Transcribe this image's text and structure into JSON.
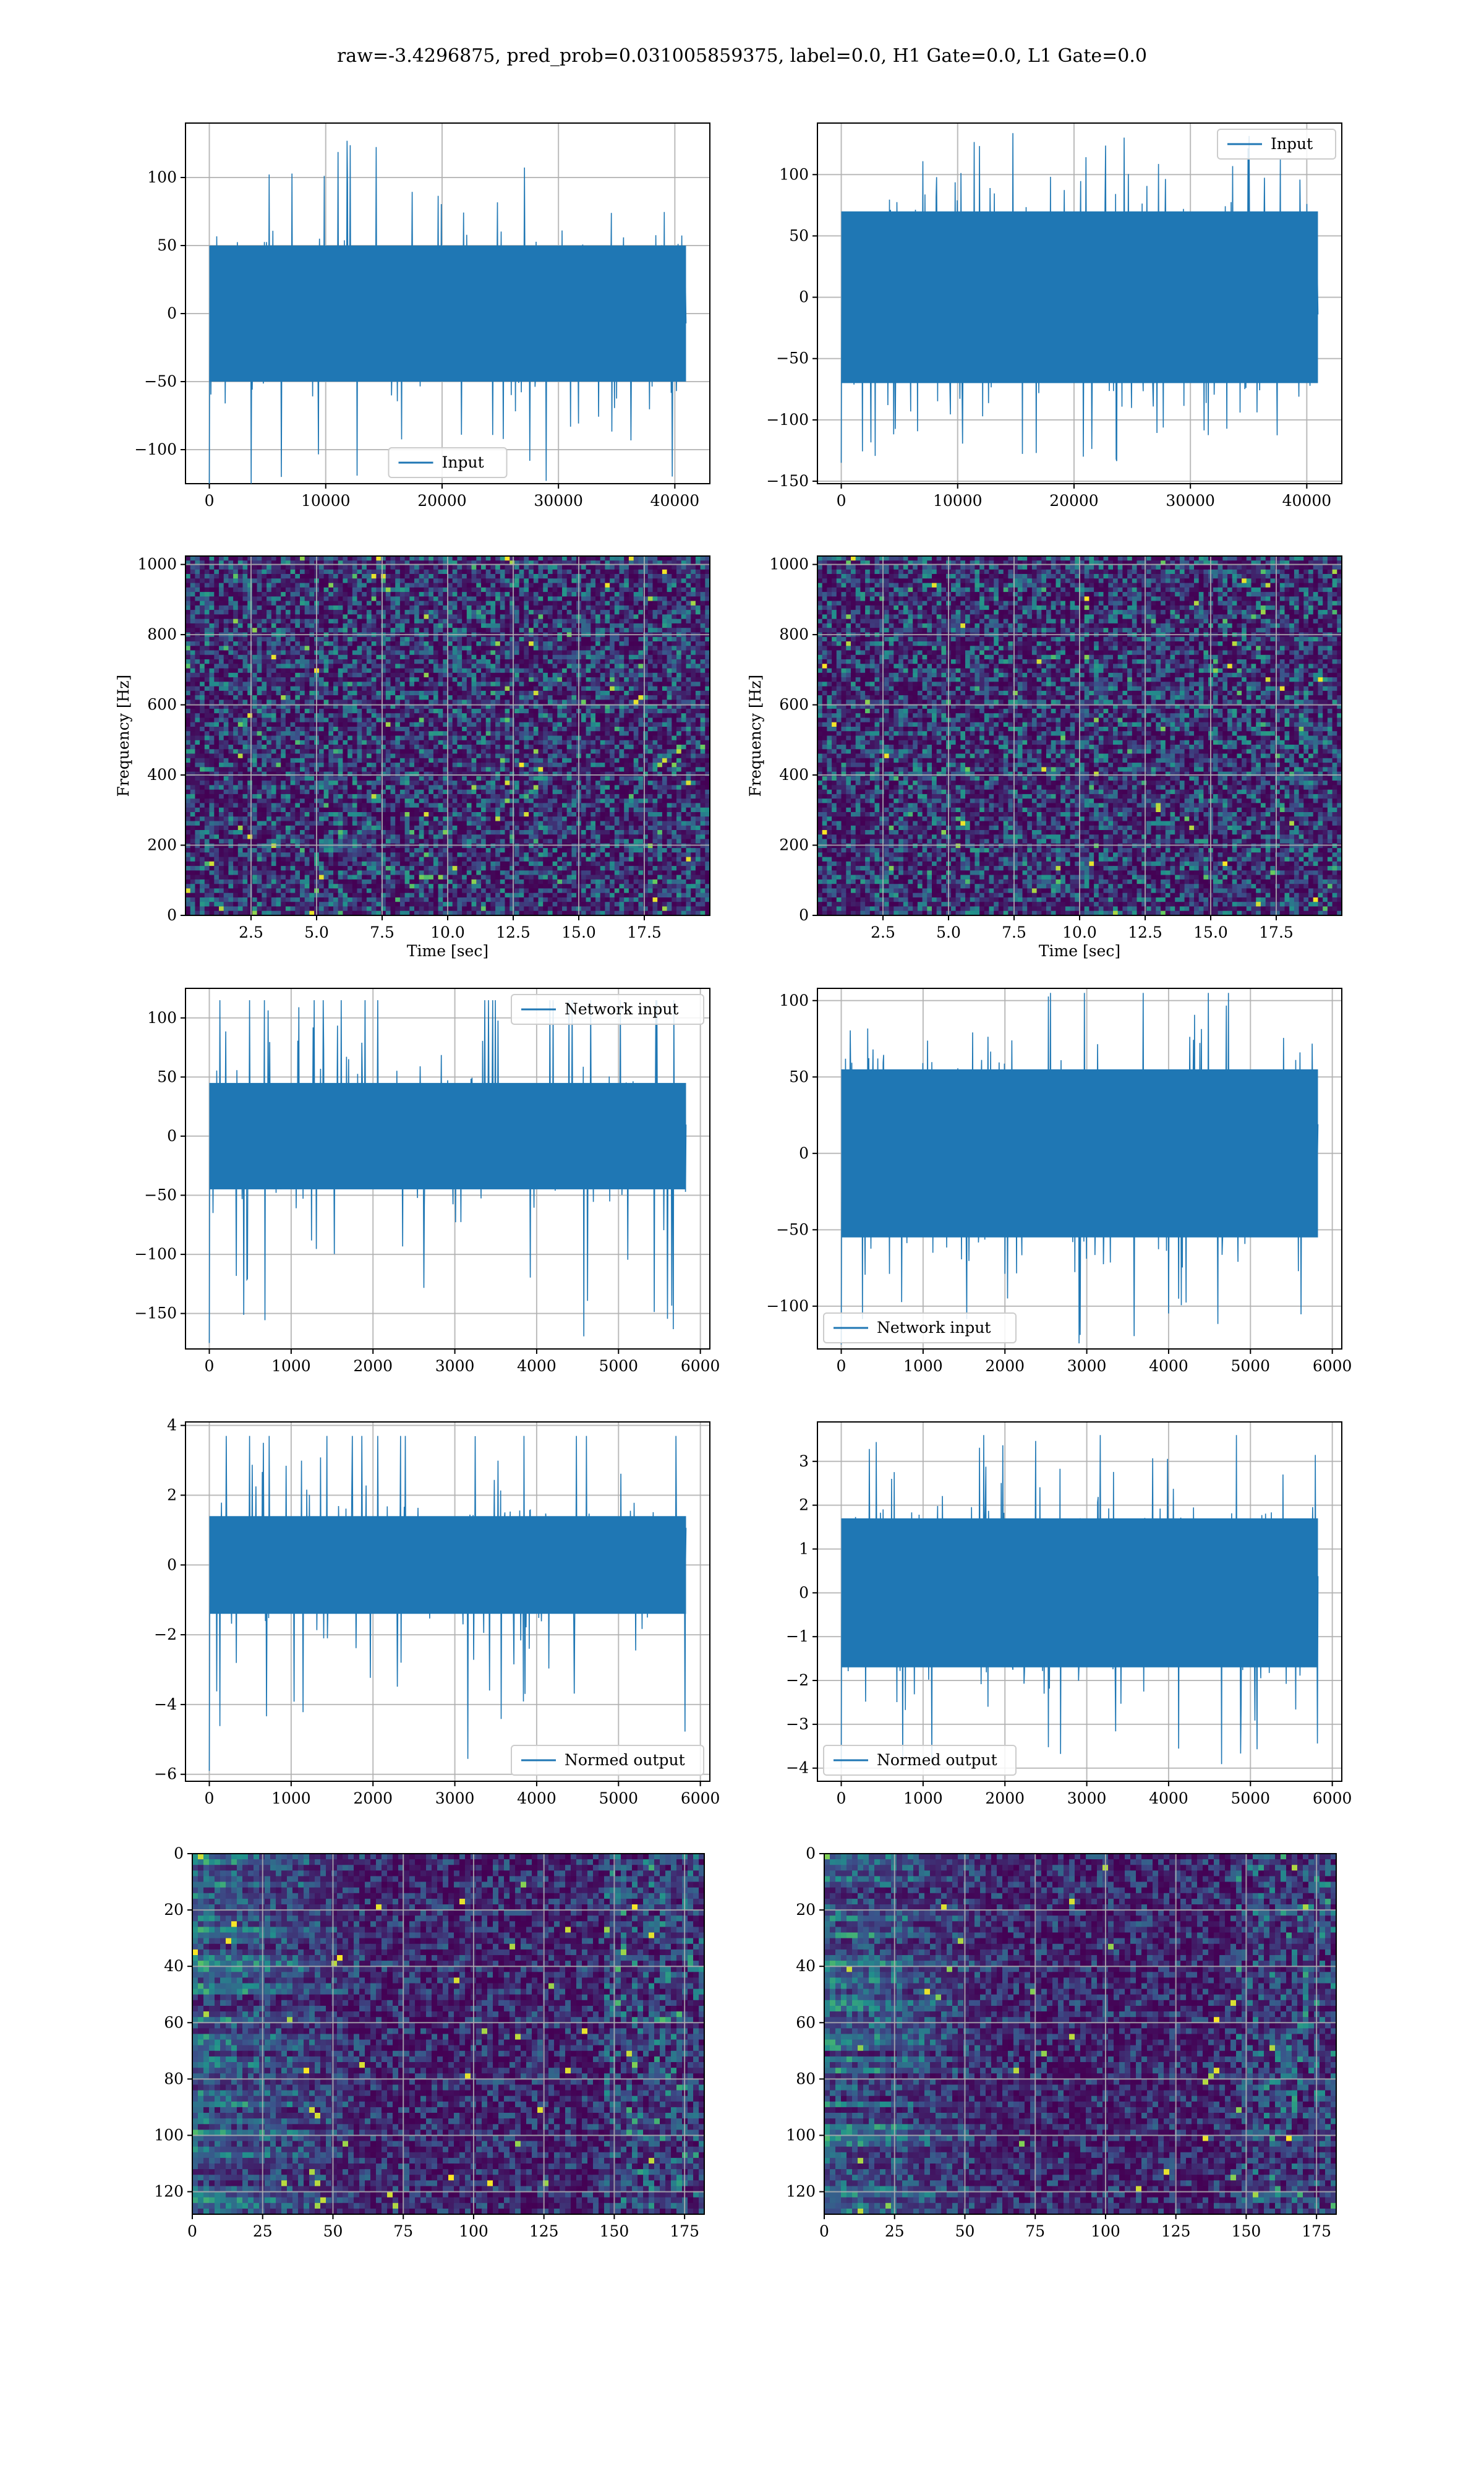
{
  "figure_title": "raw=-3.4296875, pred_prob=0.031005859375, label=0.0, H1 Gate=0.0, L1 Gate=0.0",
  "colors": {
    "line": "#1f77b4",
    "grid": "#b0b0b0",
    "viridis_low": "#440154",
    "viridis_mid": "#21918c",
    "viridis_high": "#fde725"
  },
  "chart_data": [
    {
      "id": "input-h1",
      "type": "line",
      "legend": [
        "Input"
      ],
      "legend_loc": "lower center",
      "xlim": [
        -2048,
        43008
      ],
      "ylim": [
        -125,
        140
      ],
      "xticks": [
        0,
        10000,
        20000,
        30000,
        40000
      ],
      "yticks": [
        -100,
        -50,
        0,
        50,
        100
      ],
      "series": [
        {
          "name": "Input",
          "x_range": [
            0,
            40960
          ],
          "amplitude_core": 50,
          "min": -125,
          "max": 130
        }
      ]
    },
    {
      "id": "input-l1",
      "type": "line",
      "legend": [
        "Input"
      ],
      "legend_loc": "upper right",
      "xlim": [
        -2048,
        43008
      ],
      "ylim": [
        -152,
        142
      ],
      "xticks": [
        0,
        10000,
        20000,
        30000,
        40000
      ],
      "yticks": [
        -150,
        -100,
        -50,
        0,
        50,
        100
      ],
      "series": [
        {
          "name": "Input",
          "x_range": [
            0,
            40960
          ],
          "amplitude_core": 70,
          "min": -135,
          "max": 135
        }
      ]
    },
    {
      "id": "spec-h1",
      "type": "heatmap",
      "colormap": "viridis",
      "xlabel": "Time [sec]",
      "ylabel": "Frequency [Hz]",
      "xlim": [
        0,
        20
      ],
      "ylim": [
        0,
        1024
      ],
      "xticks": [
        2.5,
        5.0,
        7.5,
        10.0,
        12.5,
        15.0,
        17.5
      ],
      "xtick_labels": [
        "2.5",
        "5.0",
        "7.5",
        "10.0",
        "12.5",
        "15.0",
        "17.5"
      ],
      "yticks": [
        0,
        200,
        400,
        600,
        800,
        1000
      ]
    },
    {
      "id": "spec-l1",
      "type": "heatmap",
      "colormap": "viridis",
      "xlabel": "Time [sec]",
      "ylabel": "Frequency [Hz]",
      "xlim": [
        0,
        20
      ],
      "ylim": [
        0,
        1024
      ],
      "xticks": [
        2.5,
        5.0,
        7.5,
        10.0,
        12.5,
        15.0,
        17.5
      ],
      "xtick_labels": [
        "2.5",
        "5.0",
        "7.5",
        "10.0",
        "12.5",
        "15.0",
        "17.5"
      ],
      "yticks": [
        0,
        200,
        400,
        600,
        800,
        1000
      ]
    },
    {
      "id": "netin-h1",
      "type": "line",
      "legend": [
        "Network input"
      ],
      "legend_loc": "upper right",
      "xlim": [
        -291,
        6116
      ],
      "ylim": [
        -180,
        125
      ],
      "xticks": [
        0,
        1000,
        2000,
        3000,
        4000,
        5000,
        6000
      ],
      "yticks": [
        -150,
        -100,
        -50,
        0,
        50,
        100
      ],
      "series": [
        {
          "name": "Network input",
          "x_range": [
            0,
            5825
          ],
          "amplitude_core": 45,
          "min": -175,
          "max": 115
        }
      ]
    },
    {
      "id": "netin-l1",
      "type": "line",
      "legend": [
        "Network input"
      ],
      "legend_loc": "lower left",
      "xlim": [
        -291,
        6116
      ],
      "ylim": [
        -128,
        108
      ],
      "xticks": [
        0,
        1000,
        2000,
        3000,
        4000,
        5000,
        6000
      ],
      "yticks": [
        -100,
        -50,
        0,
        50,
        100
      ],
      "series": [
        {
          "name": "Network input",
          "x_range": [
            0,
            5825
          ],
          "amplitude_core": 55,
          "min": -125,
          "max": 105
        }
      ]
    },
    {
      "id": "normed-h1",
      "type": "line",
      "legend": [
        "Normed output"
      ],
      "legend_loc": "lower right",
      "xlim": [
        -291,
        6116
      ],
      "ylim": [
        -6.2,
        4.1
      ],
      "xticks": [
        0,
        1000,
        2000,
        3000,
        4000,
        5000,
        6000
      ],
      "yticks": [
        -6,
        -4,
        -2,
        0,
        2,
        4
      ],
      "series": [
        {
          "name": "Normed output",
          "x_range": [
            0,
            5825
          ],
          "amplitude_core": 1.4,
          "min": -5.9,
          "max": 3.7
        }
      ]
    },
    {
      "id": "normed-l1",
      "type": "line",
      "legend": [
        "Normed output"
      ],
      "legend_loc": "lower left",
      "xlim": [
        -291,
        6116
      ],
      "ylim": [
        -4.3,
        3.9
      ],
      "xticks": [
        0,
        1000,
        2000,
        3000,
        4000,
        5000,
        6000
      ],
      "yticks": [
        -4,
        -3,
        -2,
        -1,
        0,
        1,
        2,
        3
      ],
      "series": [
        {
          "name": "Normed output",
          "x_range": [
            0,
            5825
          ],
          "amplitude_core": 1.7,
          "min": -4.0,
          "max": 3.6
        }
      ]
    },
    {
      "id": "feat-h1",
      "type": "heatmap",
      "colormap": "viridis",
      "xlim": [
        0,
        182
      ],
      "ylim": [
        128,
        0
      ],
      "xticks": [
        0,
        25,
        50,
        75,
        100,
        125,
        150,
        175
      ],
      "yticks": [
        0,
        20,
        40,
        60,
        80,
        100,
        120
      ]
    },
    {
      "id": "feat-l1",
      "type": "heatmap",
      "colormap": "viridis",
      "xlim": [
        0,
        182
      ],
      "ylim": [
        128,
        0
      ],
      "xticks": [
        0,
        25,
        50,
        75,
        100,
        125,
        150,
        175
      ],
      "yticks": [
        0,
        20,
        40,
        60,
        80,
        100,
        120
      ]
    }
  ]
}
